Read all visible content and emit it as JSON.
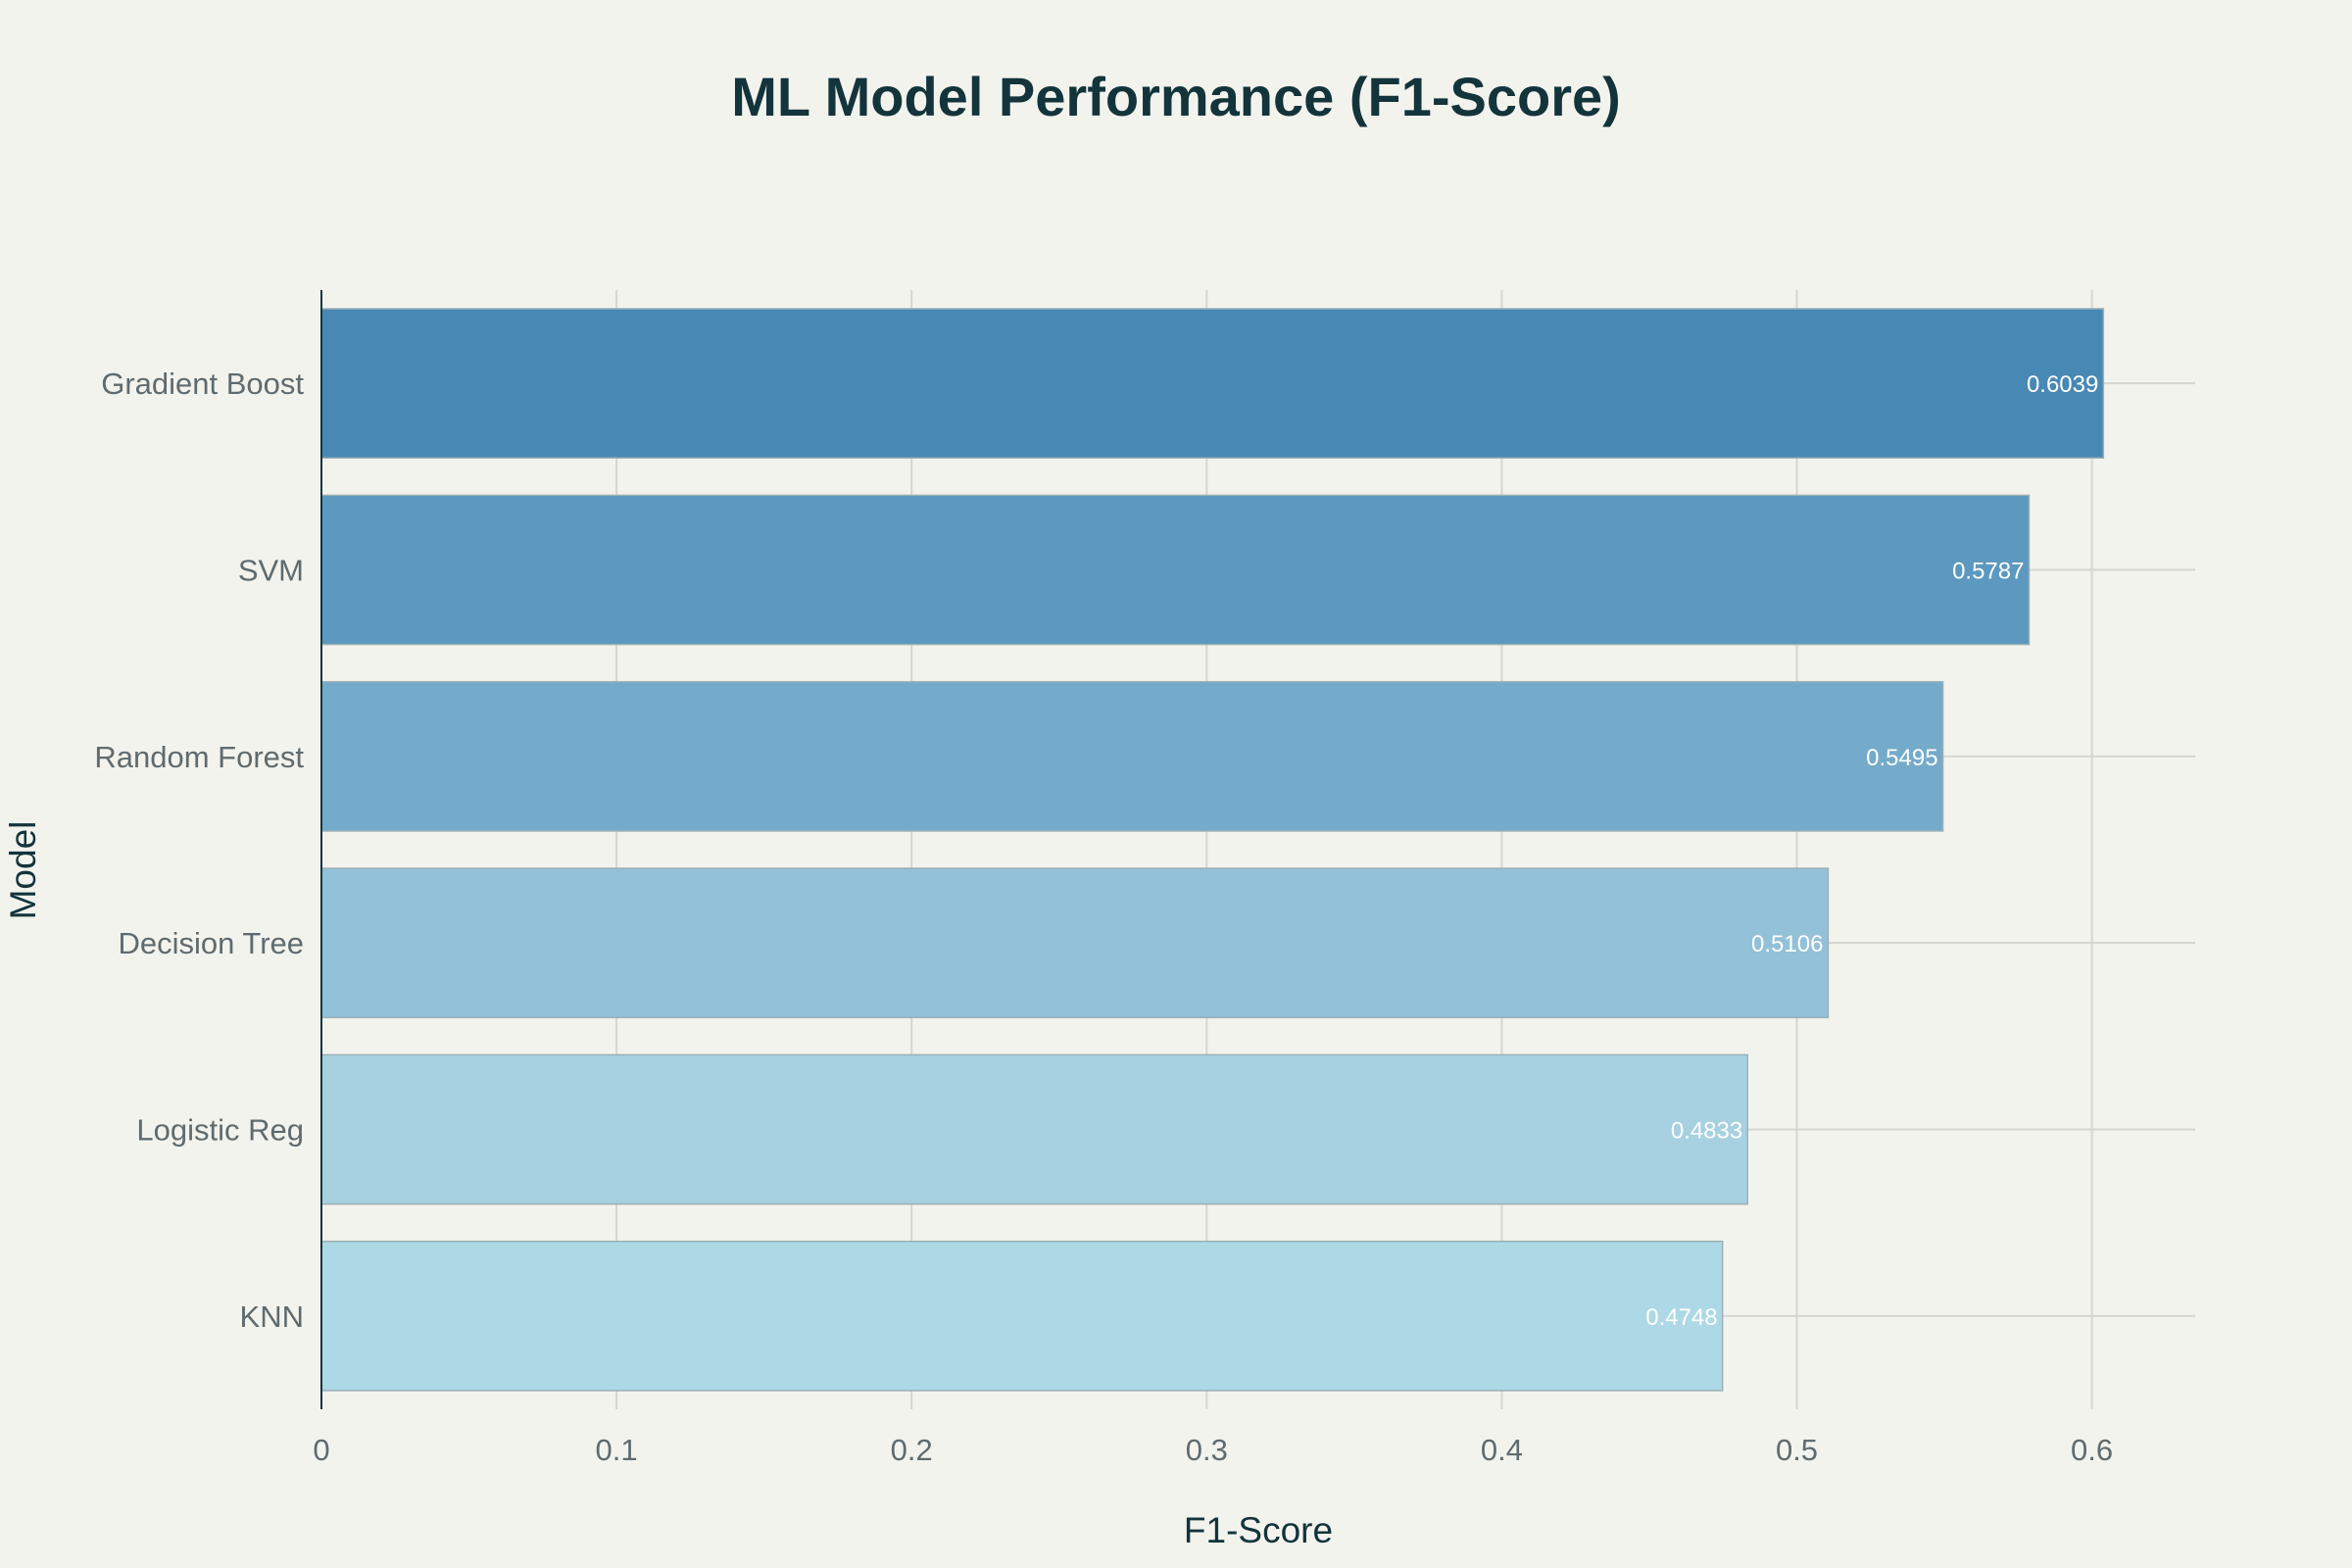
{
  "chart_data": {
    "type": "bar",
    "orientation": "horizontal",
    "title": "ML Model Performance (F1-Score)",
    "xlabel": "F1-Score",
    "ylabel": "Model",
    "categories": [
      "Gradient Boost",
      "SVM",
      "Random Forest",
      "Decision Tree",
      "Logistic Reg",
      "KNN"
    ],
    "values": [
      0.6039,
      0.5787,
      0.5495,
      0.5106,
      0.4833,
      0.4748
    ],
    "data_labels": [
      "0.6039",
      "0.5787",
      "0.5495",
      "0.5106",
      "0.4833",
      "0.4748"
    ],
    "colors": [
      "#4888b4",
      "#5c98bf",
      "#74aaca",
      "#92c1d8",
      "#a7d1e1",
      "#add8e6"
    ],
    "xlim": [
      0,
      0.635
    ],
    "xticks": [
      0,
      0.1,
      0.2,
      0.3,
      0.4,
      0.5,
      0.6
    ],
    "xtick_labels": [
      "0",
      "0.1",
      "0.2",
      "0.3",
      "0.4",
      "0.5",
      "0.6"
    ],
    "grid": true,
    "legend": "none"
  },
  "colors": {
    "background": "#f3f3ee",
    "title": "#13343b",
    "tick": "#5f6b6e",
    "grid": "#d6d6d0"
  }
}
